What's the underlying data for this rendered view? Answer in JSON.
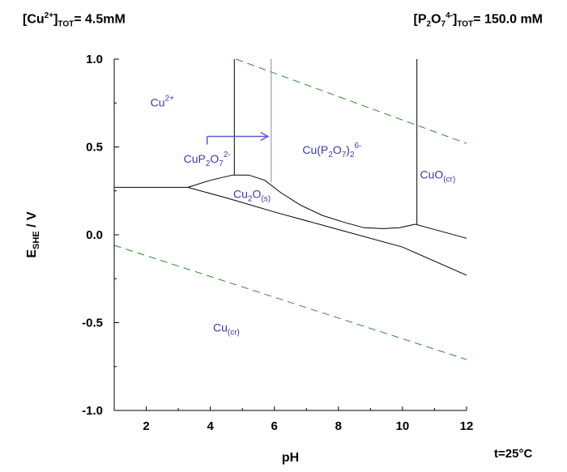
{
  "header": {
    "left": {
      "base": "[Cu",
      "sup": "2+",
      "close": "]",
      "sub": "TOT",
      "value": "= 4.5mM"
    },
    "right": {
      "base": "[P",
      "s1": "2",
      "o": "O",
      "s2": "7",
      "sup": "4-",
      "close": "]",
      "sub": "TOT",
      "value": "= 150.0 mM"
    }
  },
  "temperature": "t=25°C",
  "chart_data": {
    "type": "line",
    "xlabel": "pH",
    "ylabel": {
      "base": "E",
      "sub": "SHE",
      "rest": " / V"
    },
    "xlim": [
      1,
      12
    ],
    "ylim": [
      -1.0,
      1.0
    ],
    "xticks": [
      2,
      4,
      6,
      8,
      10,
      12
    ],
    "yticks": [
      1.0,
      0.5,
      0.0,
      -0.5,
      -1.0
    ],
    "ytick_labels": [
      "1.0",
      "0.5",
      "0.0",
      "-0.5",
      "-1.0"
    ],
    "grid": false,
    "lines": {
      "cu2_cup2o7_horizontal": [
        [
          1,
          0.27
        ],
        [
          3.3,
          0.27
        ]
      ],
      "cu2o_upper": [
        [
          3.3,
          0.27
        ],
        [
          4.0,
          0.31
        ],
        [
          4.7,
          0.34
        ],
        [
          5.2,
          0.34
        ],
        [
          5.7,
          0.31
        ],
        [
          6.2,
          0.24
        ],
        [
          6.8,
          0.17
        ],
        [
          7.5,
          0.11
        ],
        [
          8.2,
          0.07
        ],
        [
          8.8,
          0.04
        ],
        [
          9.4,
          0.035
        ],
        [
          9.9,
          0.04
        ],
        [
          10.4,
          0.06
        ],
        [
          10.8,
          0.04
        ],
        [
          11.4,
          0.01
        ],
        [
          12.0,
          -0.02
        ]
      ],
      "cu2o_lower": [
        [
          3.3,
          0.27
        ],
        [
          4.5,
          0.21
        ],
        [
          6.0,
          0.13
        ],
        [
          8.0,
          0.03
        ],
        [
          10.0,
          -0.07
        ],
        [
          12.0,
          -0.23
        ]
      ],
      "vertical_cu2_cup2o7": [
        [
          4.75,
          1.0
        ],
        [
          4.75,
          0.34
        ]
      ],
      "vertical_cup2o7_cup2o7_2": [
        [
          5.9,
          1.0
        ],
        [
          5.9,
          0.3
        ]
      ],
      "vertical_cup2o7_2_cuo": [
        [
          10.45,
          1.0
        ],
        [
          10.45,
          0.06
        ]
      ],
      "water_upper": [
        [
          4.8,
          1.0
        ],
        [
          12.0,
          0.52
        ]
      ],
      "water_lower": [
        [
          1.0,
          -0.06
        ],
        [
          12.0,
          -0.71
        ]
      ]
    },
    "arrow": {
      "from": [
        3.9,
        0.56
      ],
      "to": [
        5.8,
        0.56
      ]
    },
    "regions": [
      {
        "name": "Cu2+",
        "base": "Cu",
        "sup": "2+",
        "x": 2.5,
        "y": 0.73
      },
      {
        "name": "CuP2O7 2-",
        "base": "CuP",
        "s1": "2",
        "o": "O",
        "s2": "7",
        "sup": "2-",
        "x": 3.9,
        "y": 0.41
      },
      {
        "name": "Cu(P2O7)2 6-",
        "base": "Cu(P",
        "s1": "2",
        "o": "O",
        "s2": "7",
        "close": ")",
        "s3": "2",
        "sup": "6-",
        "x": 7.8,
        "y": 0.46
      },
      {
        "name": "CuO(cr)",
        "base": "CuO",
        "sub": "(cr)",
        "x": 11.1,
        "y": 0.32
      },
      {
        "name": "Cu2O(s)",
        "base": "Cu",
        "s1": "2",
        "o": "O",
        "sub": "(s)",
        "x": 5.3,
        "y": 0.21
      },
      {
        "name": "Cu(cr)",
        "base": "Cu",
        "sub": "(cr)",
        "x": 4.5,
        "y": -0.55
      }
    ],
    "colors": {
      "axis": "#000000",
      "boundary": "#000000",
      "boundary_light": "#888888",
      "water": "#2e8b2e",
      "label": "#3a3ab0",
      "arrow": "#5a5ad0"
    }
  }
}
